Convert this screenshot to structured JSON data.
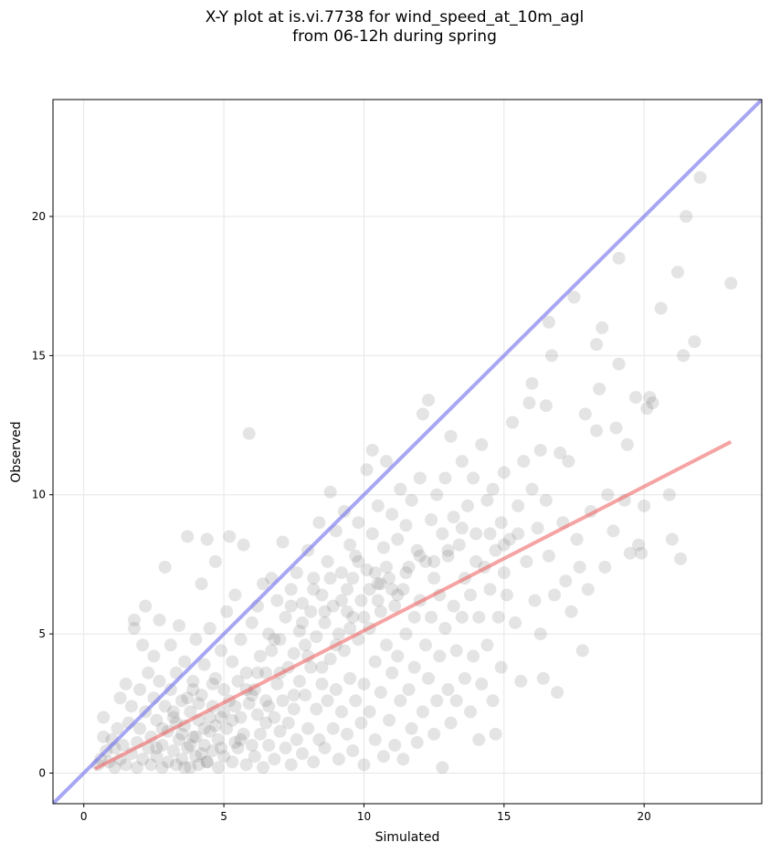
{
  "chart_data": {
    "type": "scatter",
    "title": [
      "X-Y plot at is.vi.7738 for wind_speed_at_10m_agl",
      "from 06-12h during spring"
    ],
    "xlabel": "Simulated",
    "ylabel": "Observed",
    "xlim": [
      -1.1,
      24.2
    ],
    "ylim": [
      -1.1,
      24.2
    ],
    "xticks": [
      0,
      5,
      10,
      15,
      20
    ],
    "yticks": [
      0,
      5,
      10,
      15,
      20
    ],
    "grid": true,
    "colors": {
      "points": "#555555",
      "identity_line": "#7777ee",
      "fit_line": "#ee6666"
    },
    "identity_line": {
      "x": [
        -1.1,
        24.2
      ],
      "y": [
        -1.1,
        24.2
      ]
    },
    "fit_line": {
      "x": [
        0.4,
        23.1
      ],
      "y": [
        0.15,
        11.9
      ]
    },
    "points": [
      [
        0.5,
        0.3
      ],
      [
        0.6,
        0.5
      ],
      [
        0.7,
        1.3
      ],
      [
        0.7,
        2.0
      ],
      [
        0.8,
        0.8
      ],
      [
        0.9,
        0.4
      ],
      [
        1.0,
        1.2
      ],
      [
        1.1,
        0.2
      ],
      [
        1.1,
        0.9
      ],
      [
        1.2,
        1.6
      ],
      [
        1.3,
        0.5
      ],
      [
        1.3,
        2.7
      ],
      [
        1.4,
        1.0
      ],
      [
        1.5,
        0.3
      ],
      [
        1.5,
        3.2
      ],
      [
        1.6,
        1.8
      ],
      [
        1.7,
        0.7
      ],
      [
        1.7,
        2.4
      ],
      [
        1.8,
        5.5
      ],
      [
        1.8,
        5.2
      ],
      [
        1.9,
        1.1
      ],
      [
        1.9,
        0.2
      ],
      [
        2.0,
        3.0
      ],
      [
        2.0,
        1.6
      ],
      [
        2.1,
        0.5
      ],
      [
        2.1,
        4.6
      ],
      [
        2.2,
        2.2
      ],
      [
        2.2,
        6.0
      ],
      [
        2.3,
        0.9
      ],
      [
        2.3,
        3.6
      ],
      [
        2.4,
        1.3
      ],
      [
        2.4,
        0.3
      ],
      [
        2.5,
        2.7
      ],
      [
        2.5,
        4.2
      ],
      [
        2.6,
        0.6
      ],
      [
        2.6,
        1.9
      ],
      [
        2.7,
        3.3
      ],
      [
        2.7,
        5.5
      ],
      [
        2.8,
        0.2
      ],
      [
        2.8,
        1.0
      ],
      [
        2.9,
        2.4
      ],
      [
        2.9,
        7.4
      ],
      [
        3.0,
        0.4
      ],
      [
        3.0,
        1.5
      ],
      [
        3.1,
        3.0
      ],
      [
        3.1,
        4.6
      ],
      [
        3.2,
        0.8
      ],
      [
        3.2,
        2.0
      ],
      [
        3.3,
        0.3
      ],
      [
        3.3,
        3.6
      ],
      [
        3.4,
        1.2
      ],
      [
        3.4,
        5.3
      ],
      [
        3.5,
        0.5
      ],
      [
        3.5,
        2.6
      ],
      [
        3.6,
        1.7
      ],
      [
        3.6,
        4.0
      ],
      [
        3.7,
        0.9
      ],
      [
        3.7,
        8.5
      ],
      [
        3.8,
        0.2
      ],
      [
        3.8,
        2.2
      ],
      [
        3.9,
        1.3
      ],
      [
        3.9,
        3.3
      ],
      [
        4.0,
        0.6
      ],
      [
        4.0,
        4.8
      ],
      [
        4.1,
        1.9
      ],
      [
        4.1,
        0.3
      ],
      [
        4.2,
        2.8
      ],
      [
        4.2,
        6.8
      ],
      [
        4.3,
        1.0
      ],
      [
        4.3,
        3.9
      ],
      [
        4.4,
        0.4
      ],
      [
        4.4,
        8.4
      ],
      [
        4.5,
        1.5
      ],
      [
        4.5,
        5.2
      ],
      [
        4.6,
        2.4
      ],
      [
        4.6,
        0.8
      ],
      [
        4.7,
        3.4
      ],
      [
        4.7,
        7.6
      ],
      [
        4.8,
        1.2
      ],
      [
        4.8,
        0.2
      ],
      [
        4.9,
        2.0
      ],
      [
        4.9,
        4.4
      ],
      [
        5.0,
        0.6
      ],
      [
        5.0,
        3.0
      ],
      [
        5.1,
        5.8
      ],
      [
        5.1,
        1.6
      ],
      [
        5.2,
        2.6
      ],
      [
        5.2,
        8.5
      ],
      [
        5.3,
        0.4
      ],
      [
        5.3,
        4.0
      ],
      [
        5.4,
        1.1
      ],
      [
        5.4,
        6.4
      ],
      [
        5.5,
        3.3
      ],
      [
        5.5,
        0.9
      ],
      [
        5.6,
        2.0
      ],
      [
        5.6,
        4.8
      ],
      [
        5.7,
        1.4
      ],
      [
        5.7,
        8.2
      ],
      [
        5.8,
        0.3
      ],
      [
        5.8,
        3.6
      ],
      [
        5.9,
        2.5
      ],
      [
        5.9,
        12.2
      ],
      [
        6.0,
        1.0
      ],
      [
        6.0,
        5.4
      ],
      [
        6.1,
        3.0
      ],
      [
        6.1,
        0.6
      ],
      [
        6.2,
        6.0
      ],
      [
        6.2,
        2.1
      ],
      [
        6.3,
        4.2
      ],
      [
        6.3,
        1.4
      ],
      [
        6.4,
        6.8
      ],
      [
        6.4,
        0.2
      ],
      [
        6.5,
        3.6
      ],
      [
        6.5,
        2.6
      ],
      [
        6.6,
        5.0
      ],
      [
        6.6,
        1.0
      ],
      [
        6.7,
        4.4
      ],
      [
        6.7,
        7.0
      ],
      [
        6.8,
        2.0
      ],
      [
        6.8,
        0.5
      ],
      [
        6.9,
        3.2
      ],
      [
        6.9,
        6.2
      ],
      [
        7.0,
        1.5
      ],
      [
        7.0,
        4.8
      ],
      [
        7.1,
        8.3
      ],
      [
        7.1,
        2.6
      ],
      [
        7.2,
        0.9
      ],
      [
        7.2,
        5.6
      ],
      [
        7.3,
        3.8
      ],
      [
        7.3,
        1.8
      ],
      [
        7.4,
        6.6
      ],
      [
        7.4,
        0.3
      ],
      [
        7.5,
        4.3
      ],
      [
        7.5,
        2.3
      ],
      [
        7.6,
        7.2
      ],
      [
        7.6,
        1.2
      ],
      [
        7.7,
        5.1
      ],
      [
        7.7,
        3.3
      ],
      [
        7.8,
        0.7
      ],
      [
        7.8,
        6.1
      ],
      [
        7.9,
        2.8
      ],
      [
        7.9,
        4.6
      ],
      [
        8.0,
        8.0
      ],
      [
        8.0,
        1.6
      ],
      [
        8.1,
        3.8
      ],
      [
        8.1,
        5.8
      ],
      [
        8.2,
        0.4
      ],
      [
        8.2,
        7.0
      ],
      [
        8.3,
        2.3
      ],
      [
        8.3,
        4.9
      ],
      [
        8.4,
        9.0
      ],
      [
        8.4,
        1.2
      ],
      [
        8.5,
        3.2
      ],
      [
        8.5,
        6.4
      ],
      [
        8.6,
        0.9
      ],
      [
        8.6,
        5.4
      ],
      [
        8.7,
        2.6
      ],
      [
        8.7,
        7.6
      ],
      [
        8.8,
        4.1
      ],
      [
        8.8,
        10.1
      ],
      [
        8.9,
        1.6
      ],
      [
        8.9,
        6.0
      ],
      [
        9.0,
        3.0
      ],
      [
        9.0,
        8.7
      ],
      [
        9.1,
        0.5
      ],
      [
        9.1,
        5.0
      ],
      [
        9.2,
        2.2
      ],
      [
        9.2,
        7.2
      ],
      [
        9.3,
        4.4
      ],
      [
        9.3,
        9.4
      ],
      [
        9.4,
        1.4
      ],
      [
        9.4,
        6.6
      ],
      [
        9.5,
        3.4
      ],
      [
        9.5,
        8.2
      ],
      [
        9.6,
        0.8
      ],
      [
        9.6,
        5.6
      ],
      [
        9.7,
        2.6
      ],
      [
        9.7,
        7.8
      ],
      [
        9.8,
        4.8
      ],
      [
        9.8,
        9.0
      ],
      [
        9.9,
        1.8
      ],
      [
        9.9,
        6.2
      ],
      [
        10.0,
        3.2
      ],
      [
        10.0,
        0.3
      ],
      [
        10.1,
        7.3
      ],
      [
        10.1,
        10.9
      ],
      [
        10.2,
        2.2
      ],
      [
        10.2,
        5.2
      ],
      [
        10.3,
        8.6
      ],
      [
        10.3,
        11.6
      ],
      [
        10.4,
        4.0
      ],
      [
        10.4,
        1.2
      ],
      [
        10.5,
        6.8
      ],
      [
        10.5,
        9.6
      ],
      [
        10.6,
        2.9
      ],
      [
        10.6,
        5.8
      ],
      [
        10.7,
        0.6
      ],
      [
        10.7,
        8.1
      ],
      [
        10.8,
        4.6
      ],
      [
        10.8,
        11.2
      ],
      [
        10.9,
        1.9
      ],
      [
        10.9,
        7.0
      ],
      [
        11.0,
        3.6
      ],
      [
        11.0,
        9.3
      ],
      [
        11.1,
        6.0
      ],
      [
        11.1,
        1.0
      ],
      [
        11.2,
        8.4
      ],
      [
        11.2,
        4.2
      ],
      [
        11.3,
        10.2
      ],
      [
        11.3,
        2.6
      ],
      [
        11.4,
        6.6
      ],
      [
        11.4,
        0.5
      ],
      [
        11.5,
        5.0
      ],
      [
        11.5,
        8.9
      ],
      [
        11.6,
        3.0
      ],
      [
        11.6,
        7.4
      ],
      [
        11.7,
        1.6
      ],
      [
        11.7,
        9.8
      ],
      [
        11.8,
        5.6
      ],
      [
        11.8,
        3.8
      ],
      [
        11.9,
        8.0
      ],
      [
        11.9,
        1.1
      ],
      [
        12.0,
        6.2
      ],
      [
        12.0,
        10.6
      ],
      [
        12.1,
        2.2
      ],
      [
        12.1,
        12.9
      ],
      [
        12.2,
        4.6
      ],
      [
        12.2,
        7.6
      ],
      [
        12.3,
        13.4
      ],
      [
        12.3,
        3.4
      ],
      [
        12.4,
        9.1
      ],
      [
        12.4,
        5.6
      ],
      [
        12.5,
        1.4
      ],
      [
        12.5,
        7.0
      ],
      [
        12.6,
        10.0
      ],
      [
        12.6,
        2.6
      ],
      [
        12.7,
        6.4
      ],
      [
        12.7,
        4.2
      ],
      [
        12.8,
        8.6
      ],
      [
        12.8,
        0.2
      ],
      [
        12.9,
        5.2
      ],
      [
        12.9,
        10.6
      ],
      [
        13.0,
        3.0
      ],
      [
        13.0,
        7.8
      ],
      [
        13.1,
        12.1
      ],
      [
        13.1,
        1.8
      ],
      [
        13.2,
        6.0
      ],
      [
        13.2,
        9.2
      ],
      [
        13.3,
        4.4
      ],
      [
        13.3,
        2.6
      ],
      [
        13.4,
        8.2
      ],
      [
        13.5,
        5.6
      ],
      [
        13.5,
        11.2
      ],
      [
        13.6,
        3.4
      ],
      [
        13.6,
        7.0
      ],
      [
        13.7,
        9.6
      ],
      [
        13.8,
        2.2
      ],
      [
        13.8,
        6.4
      ],
      [
        13.9,
        4.2
      ],
      [
        13.9,
        10.6
      ],
      [
        14.0,
        8.6
      ],
      [
        14.1,
        1.2
      ],
      [
        14.1,
        5.6
      ],
      [
        14.2,
        11.8
      ],
      [
        14.2,
        3.2
      ],
      [
        14.3,
        7.4
      ],
      [
        14.4,
        9.8
      ],
      [
        14.4,
        4.6
      ],
      [
        14.5,
        6.6
      ],
      [
        14.6,
        2.6
      ],
      [
        14.6,
        10.2
      ],
      [
        14.7,
        8.0
      ],
      [
        14.7,
        1.4
      ],
      [
        14.8,
        5.6
      ],
      [
        14.9,
        9.0
      ],
      [
        14.9,
        3.8
      ],
      [
        15.0,
        7.2
      ],
      [
        15.0,
        10.8
      ],
      [
        15.1,
        6.4
      ],
      [
        15.2,
        8.4
      ],
      [
        15.3,
        12.6
      ],
      [
        15.4,
        5.4
      ],
      [
        15.5,
        9.6
      ],
      [
        15.6,
        3.3
      ],
      [
        15.7,
        11.2
      ],
      [
        15.8,
        7.6
      ],
      [
        15.9,
        13.3
      ],
      [
        16.0,
        14.0
      ],
      [
        16.0,
        10.2
      ],
      [
        16.1,
        6.2
      ],
      [
        16.2,
        8.8
      ],
      [
        16.3,
        11.6
      ],
      [
        16.3,
        5.0
      ],
      [
        16.4,
        3.4
      ],
      [
        16.5,
        9.8
      ],
      [
        16.5,
        13.2
      ],
      [
        16.6,
        16.2
      ],
      [
        16.6,
        7.8
      ],
      [
        16.7,
        15.0
      ],
      [
        16.8,
        6.4
      ],
      [
        16.9,
        2.9
      ],
      [
        17.0,
        11.5
      ],
      [
        17.1,
        9.0
      ],
      [
        17.2,
        6.9
      ],
      [
        17.3,
        11.2
      ],
      [
        17.4,
        5.8
      ],
      [
        17.5,
        17.1
      ],
      [
        17.6,
        8.4
      ],
      [
        17.7,
        7.4
      ],
      [
        17.8,
        4.4
      ],
      [
        17.9,
        12.9
      ],
      [
        18.0,
        6.6
      ],
      [
        18.1,
        9.4
      ],
      [
        18.3,
        15.4
      ],
      [
        18.3,
        12.3
      ],
      [
        18.4,
        13.8
      ],
      [
        18.5,
        16.0
      ],
      [
        18.6,
        7.4
      ],
      [
        18.7,
        10.0
      ],
      [
        18.9,
        8.7
      ],
      [
        19.0,
        12.4
      ],
      [
        19.1,
        14.7
      ],
      [
        19.1,
        18.5
      ],
      [
        19.3,
        9.8
      ],
      [
        19.4,
        11.8
      ],
      [
        19.5,
        7.9
      ],
      [
        19.7,
        13.5
      ],
      [
        19.8,
        8.2
      ],
      [
        19.9,
        7.9
      ],
      [
        20.0,
        9.6
      ],
      [
        20.1,
        13.1
      ],
      [
        20.2,
        13.5
      ],
      [
        20.3,
        13.3
      ],
      [
        20.6,
        16.7
      ],
      [
        20.9,
        10.0
      ],
      [
        21.0,
        8.4
      ],
      [
        21.2,
        18.0
      ],
      [
        21.3,
        7.7
      ],
      [
        21.4,
        15.0
      ],
      [
        21.5,
        20.0
      ],
      [
        21.8,
        15.5
      ],
      [
        22.0,
        21.4
      ],
      [
        23.1,
        17.6
      ],
      [
        2.6,
        0.9
      ],
      [
        3.3,
        1.8
      ],
      [
        3.6,
        0.2
      ],
      [
        4.0,
        1.3
      ],
      [
        4.2,
        0.7
      ],
      [
        4.5,
        2.0
      ],
      [
        3.8,
        1.0
      ],
      [
        4.1,
        2.5
      ],
      [
        3.5,
        1.4
      ],
      [
        4.4,
        0.4
      ],
      [
        3.9,
        3.0
      ],
      [
        4.7,
        1.7
      ],
      [
        5.0,
        2.2
      ],
      [
        3.2,
        2.2
      ],
      [
        2.8,
        1.6
      ],
      [
        4.3,
        1.6
      ],
      [
        4.9,
        0.9
      ],
      [
        5.3,
        1.9
      ],
      [
        3.7,
        2.7
      ],
      [
        4.6,
        3.2
      ],
      [
        6.0,
        2.8
      ],
      [
        6.5,
        1.8
      ],
      [
        7.0,
        3.6
      ],
      [
        7.5,
        2.8
      ],
      [
        8.0,
        4.2
      ],
      [
        8.5,
        3.8
      ],
      [
        9.0,
        4.6
      ],
      [
        9.5,
        5.2
      ],
      [
        10.0,
        5.6
      ],
      [
        10.5,
        6.2
      ],
      [
        11.0,
        6.6
      ],
      [
        11.5,
        7.2
      ],
      [
        12.0,
        7.8
      ],
      [
        12.5,
        7.6
      ],
      [
        13.0,
        8.0
      ],
      [
        13.5,
        8.8
      ],
      [
        14.0,
        7.6
      ],
      [
        14.5,
        8.6
      ],
      [
        15.0,
        8.2
      ],
      [
        15.5,
        8.6
      ],
      [
        9.2,
        6.2
      ],
      [
        9.6,
        7.0
      ],
      [
        10.2,
        6.6
      ],
      [
        10.8,
        7.4
      ],
      [
        9.8,
        7.6
      ],
      [
        10.4,
        7.2
      ],
      [
        9.4,
        5.8
      ],
      [
        10.6,
        6.8
      ],
      [
        11.2,
        6.4
      ],
      [
        8.6,
        5.8
      ],
      [
        8.2,
        6.6
      ],
      [
        8.8,
        7.0
      ],
      [
        7.8,
        5.4
      ],
      [
        7.4,
        6.0
      ],
      [
        6.8,
        4.8
      ],
      [
        6.2,
        3.6
      ],
      [
        5.8,
        3.0
      ],
      [
        5.4,
        2.4
      ],
      [
        5.6,
        1.2
      ],
      [
        6.6,
        2.4
      ]
    ]
  }
}
